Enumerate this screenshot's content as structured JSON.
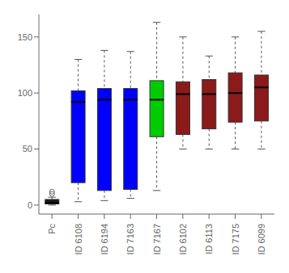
{
  "chart_data": {
    "type": "box",
    "categories": [
      "Pc",
      "ID 6108",
      "ID 6194",
      "ID 7163",
      "ID 7167",
      "ID 6102",
      "ID 6113",
      "ID 7175",
      "ID 6099"
    ],
    "colors": [
      "#1a1a1a",
      "#0000ff",
      "#0000ff",
      "#0000ff",
      "#00cc00",
      "#8b1a1a",
      "#8b1a1a",
      "#8b1a1a",
      "#8b1a1a"
    ],
    "boxes": [
      {
        "q1": 1,
        "median": 2,
        "q3": 5,
        "whisker_low": 0,
        "whisker_high": 7,
        "outliers": [
          10,
          12
        ]
      },
      {
        "q1": 20,
        "median": 92,
        "q3": 102,
        "whisker_low": 3,
        "whisker_high": 130,
        "outliers": []
      },
      {
        "q1": 13,
        "median": 94,
        "q3": 104,
        "whisker_low": 4,
        "whisker_high": 138,
        "outliers": []
      },
      {
        "q1": 14,
        "median": 94,
        "q3": 104,
        "whisker_low": 6,
        "whisker_high": 137,
        "outliers": []
      },
      {
        "q1": 61,
        "median": 94,
        "q3": 111,
        "whisker_low": 13,
        "whisker_high": 163,
        "outliers": []
      },
      {
        "q1": 63,
        "median": 99,
        "q3": 110,
        "whisker_low": 50,
        "whisker_high": 150,
        "outliers": []
      },
      {
        "q1": 68,
        "median": 99,
        "q3": 112,
        "whisker_low": 50,
        "whisker_high": 133,
        "outliers": []
      },
      {
        "q1": 74,
        "median": 100,
        "q3": 118,
        "whisker_low": 50,
        "whisker_high": 150,
        "outliers": []
      },
      {
        "q1": 75,
        "median": 105,
        "q3": 116,
        "whisker_low": 50,
        "whisker_high": 155,
        "outliers": []
      }
    ],
    "ylim": [
      -8,
      170
    ],
    "yticks": [
      0,
      50,
      100,
      150
    ]
  }
}
